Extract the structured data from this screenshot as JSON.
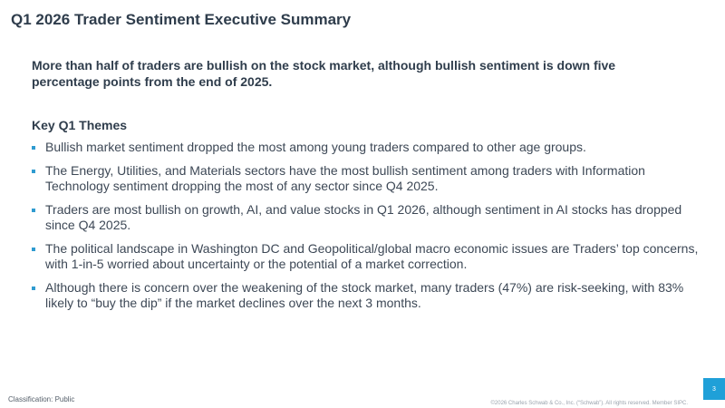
{
  "slide": {
    "title": "Q1 2026 Trader Sentiment Executive Summary",
    "headline": "More than half of traders are bullish on the stock market, although bullish sentiment is down five percentage points from the end of 2025.",
    "themes_heading": "Key Q1 Themes",
    "themes": [
      "Bullish market sentiment dropped the most among young traders compared to other age groups.",
      "The Energy, Utilities, and Materials sectors have the most bullish sentiment among traders with Information Technology sentiment dropping the most of any sector since Q4 2025.",
      "Traders are most bullish on growth, AI, and value stocks in Q1 2026, although sentiment in AI stocks has dropped since Q4 2025.",
      "The political landscape in Washington DC and Geopolitical/global macro economic issues are Traders’ top concerns, with 1-in-5 worried about uncertainty or the potential of a market correction.",
      "Although there is concern over the weakening of the stock market, many traders (47%) are risk-seeking, with 83% likely to “buy the dip” if the market declines over the next 3 months."
    ]
  },
  "footer": {
    "classification": "Classification: Public",
    "copyright": "©2026 Charles Schwab & Co., Inc. (“Schwab”). All rights reserved. Member SIPC.",
    "page_number": "3"
  },
  "colors": {
    "title": "#2f3d4c",
    "body_text": "#3d4856",
    "bullet": "#2f9bd0",
    "page_badge": "#1fa0d8"
  }
}
